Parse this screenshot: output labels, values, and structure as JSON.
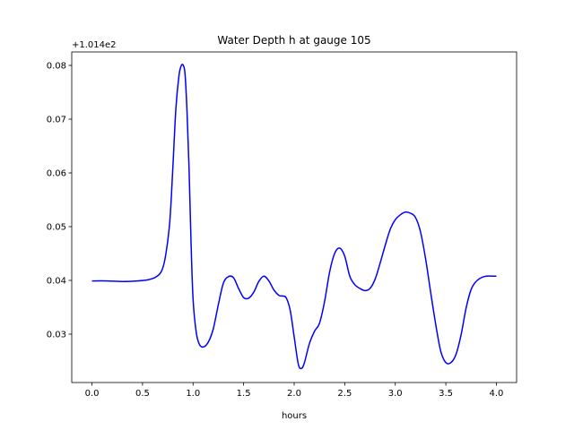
{
  "chart_data": {
    "type": "line",
    "title": "Water Depth h at gauge 105",
    "xlabel": "hours",
    "ylabel": "",
    "y_offset_label": "+1.014e2",
    "xlim": [
      -0.2,
      4.2
    ],
    "ylim": [
      0.021,
      0.0825
    ],
    "xticks": [
      0.0,
      0.5,
      1.0,
      1.5,
      2.0,
      2.5,
      3.0,
      3.5,
      4.0
    ],
    "xtick_labels": [
      "0.0",
      "0.5",
      "1.0",
      "1.5",
      "2.0",
      "2.5",
      "3.0",
      "3.5",
      "4.0"
    ],
    "yticks": [
      0.03,
      0.04,
      0.05,
      0.06,
      0.07,
      0.08
    ],
    "ytick_labels": [
      "0.03",
      "0.04",
      "0.05",
      "0.06",
      "0.07",
      "0.08"
    ],
    "grid": false,
    "legend": "none",
    "series": [
      {
        "color": "#0000ff",
        "x": [
          0.0,
          0.15,
          0.3,
          0.45,
          0.55,
          0.63,
          0.69,
          0.73,
          0.77,
          0.8,
          0.83,
          0.86,
          0.88,
          0.9,
          0.92,
          0.94,
          0.96,
          0.98,
          1.0,
          1.03,
          1.06,
          1.1,
          1.15,
          1.2,
          1.25,
          1.3,
          1.35,
          1.4,
          1.45,
          1.5,
          1.55,
          1.6,
          1.65,
          1.7,
          1.75,
          1.8,
          1.85,
          1.88,
          1.92,
          1.96,
          2.0,
          2.04,
          2.07,
          2.1,
          2.15,
          2.2,
          2.25,
          2.3,
          2.35,
          2.4,
          2.45,
          2.5,
          2.55,
          2.6,
          2.65,
          2.7,
          2.75,
          2.8,
          2.85,
          2.9,
          2.95,
          3.0,
          3.05,
          3.1,
          3.15,
          3.2,
          3.25,
          3.3,
          3.35,
          3.4,
          3.45,
          3.5,
          3.55,
          3.6,
          3.65,
          3.7,
          3.75,
          3.8,
          3.85,
          3.9,
          3.95,
          4.0
        ],
        "y": [
          0.0399,
          0.0399,
          0.0398,
          0.0399,
          0.0401,
          0.0406,
          0.0418,
          0.0448,
          0.051,
          0.061,
          0.072,
          0.078,
          0.0798,
          0.0801,
          0.0785,
          0.0715,
          0.061,
          0.047,
          0.0365,
          0.0305,
          0.0282,
          0.0276,
          0.0285,
          0.031,
          0.0355,
          0.0395,
          0.0407,
          0.0405,
          0.0385,
          0.0368,
          0.0367,
          0.0378,
          0.0398,
          0.0408,
          0.0399,
          0.0382,
          0.0372,
          0.0371,
          0.0368,
          0.0345,
          0.0295,
          0.0245,
          0.0236,
          0.0246,
          0.0282,
          0.0305,
          0.032,
          0.036,
          0.0415,
          0.045,
          0.046,
          0.0445,
          0.0408,
          0.0392,
          0.0385,
          0.0381,
          0.0385,
          0.0402,
          0.0432,
          0.0465,
          0.0495,
          0.0513,
          0.0522,
          0.0527,
          0.0525,
          0.0517,
          0.049,
          0.044,
          0.0378,
          0.0318,
          0.0268,
          0.0247,
          0.0247,
          0.0262,
          0.0298,
          0.0348,
          0.0383,
          0.0398,
          0.0405,
          0.0408,
          0.0408,
          0.0408
        ]
      }
    ]
  }
}
